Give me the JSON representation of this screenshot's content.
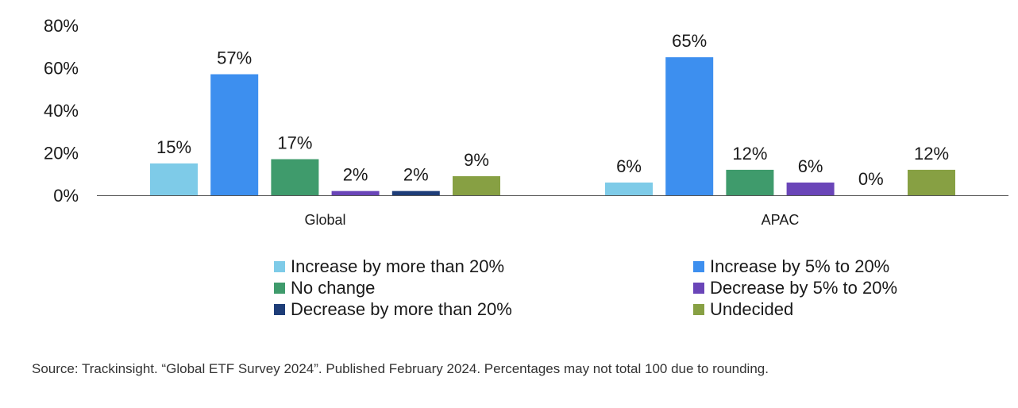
{
  "chart_data": {
    "type": "bar",
    "categories": [
      "Global",
      "APAC"
    ],
    "series": [
      {
        "name": "Increase by more than 20%",
        "color": "#7ecbe8",
        "values": [
          15,
          6
        ],
        "labels": [
          "15%",
          "6%"
        ]
      },
      {
        "name": "Increase by 5% to 20%",
        "color": "#3d8fef",
        "values": [
          57,
          65
        ],
        "labels": [
          "57%",
          "65%"
        ]
      },
      {
        "name": "No change",
        "color": "#3f9b6c",
        "values": [
          17,
          12
        ],
        "labels": [
          "17%",
          "12%"
        ]
      },
      {
        "name": "Decrease by 5% to 20%",
        "color": "#6a45b8",
        "values": [
          2,
          6
        ],
        "labels": [
          "2%",
          "6%"
        ]
      },
      {
        "name": "Decrease by more than 20%",
        "color": "#1e3d78",
        "values": [
          2,
          0
        ],
        "labels": [
          "2%",
          "0%"
        ]
      },
      {
        "name": "Undecided",
        "color": "#87a043",
        "values": [
          9,
          12
        ],
        "labels": [
          "9%",
          "12%"
        ]
      }
    ],
    "ylim": [
      0,
      80
    ],
    "yticks": [
      0,
      20,
      40,
      60,
      80
    ],
    "ytick_labels": [
      "0%",
      "20%",
      "40%",
      "60%",
      "80%"
    ],
    "title": "",
    "xlabel": "",
    "ylabel": "",
    "grid": false,
    "legend_position": "bottom"
  },
  "source": "Source: Trackinsight. “Global ETF Survey 2024”. Published February 2024. Percentages may not total 100 due to rounding."
}
